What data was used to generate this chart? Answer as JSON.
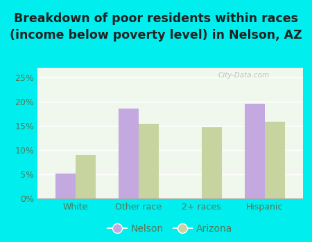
{
  "title_line1": "Breakdown of poor residents within races",
  "title_line2": "(income below poverty level) in Nelson, AZ",
  "categories": [
    "White",
    "Other race",
    "2+ races",
    "Hispanic"
  ],
  "nelson_values": [
    5.2,
    18.5,
    0.0,
    19.5
  ],
  "arizona_values": [
    9.0,
    15.5,
    14.7,
    15.9
  ],
  "nelson_color": "#c4a8e0",
  "arizona_color": "#c8d4a0",
  "ylim": [
    0,
    27
  ],
  "yticks": [
    0,
    5,
    10,
    15,
    20,
    25
  ],
  "ytick_labels": [
    "0%",
    "5%",
    "10%",
    "15%",
    "20%",
    "25%"
  ],
  "bar_width": 0.32,
  "figure_bg_color": "#00eeee",
  "plot_bg_color": "#f0f8ee",
  "title_fontsize": 12.5,
  "axis_label_fontsize": 9,
  "tick_label_color": "#557755",
  "legend_labels": [
    "Nelson",
    "Arizona"
  ],
  "watermark": "City-Data.com"
}
